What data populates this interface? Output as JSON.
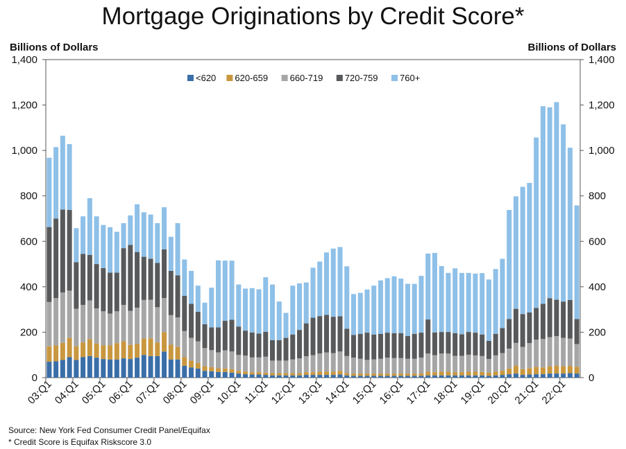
{
  "chart_data": {
    "type": "bar",
    "stacked": true,
    "title": "Mortgage Originations by Credit Score*",
    "ylabel_left": "Billions of Dollars",
    "ylabel_right": "Billions of Dollars",
    "ylim": [
      0,
      1400
    ],
    "yticks": [
      "0",
      "200",
      "400",
      "600",
      "800",
      "1,000",
      "1,200",
      "1,400"
    ],
    "ytick_values": [
      0,
      200,
      400,
      600,
      800,
      1000,
      1200,
      1400
    ],
    "xtick_labels": [
      "03:Q1",
      "04:Q1",
      "05:Q1",
      "06:Q1",
      "07:Q1",
      "08:Q1",
      "09:Q1",
      "10:Q1",
      "11:Q1",
      "12:Q1",
      "13:Q1",
      "14:Q1",
      "15:Q1",
      "16:Q1",
      "17:Q1",
      "18:Q1",
      "19:Q1",
      "20:Q1",
      "21:Q1",
      "22:Q1"
    ],
    "legend_position": "top-center",
    "grid": false,
    "categories": [
      "03:Q1",
      "03:Q2",
      "03:Q3",
      "03:Q4",
      "04:Q1",
      "04:Q2",
      "04:Q3",
      "04:Q4",
      "05:Q1",
      "05:Q2",
      "05:Q3",
      "05:Q4",
      "06:Q1",
      "06:Q2",
      "06:Q3",
      "06:Q4",
      "07:Q1",
      "07:Q2",
      "07:Q3",
      "07:Q4",
      "08:Q1",
      "08:Q2",
      "08:Q3",
      "08:Q4",
      "09:Q1",
      "09:Q2",
      "09:Q3",
      "09:Q4",
      "10:Q1",
      "10:Q2",
      "10:Q3",
      "10:Q4",
      "11:Q1",
      "11:Q2",
      "11:Q3",
      "11:Q4",
      "12:Q1",
      "12:Q2",
      "12:Q3",
      "12:Q4",
      "13:Q1",
      "13:Q2",
      "13:Q3",
      "13:Q4",
      "14:Q1",
      "14:Q2",
      "14:Q3",
      "14:Q4",
      "15:Q1",
      "15:Q2",
      "15:Q3",
      "15:Q4",
      "16:Q1",
      "16:Q2",
      "16:Q3",
      "16:Q4",
      "17:Q1",
      "17:Q2",
      "17:Q3",
      "17:Q4",
      "18:Q1",
      "18:Q2",
      "18:Q3",
      "18:Q4",
      "19:Q1",
      "19:Q2",
      "19:Q3",
      "19:Q4",
      "20:Q1",
      "20:Q2",
      "20:Q3",
      "20:Q4",
      "21:Q1",
      "21:Q2",
      "21:Q3",
      "21:Q4",
      "22:Q1",
      "22:Q2",
      "22:Q3"
    ],
    "series": [
      {
        "name": "<620",
        "color": "#3a6ea8",
        "values": [
          70,
          72,
          78,
          90,
          78,
          90,
          95,
          88,
          82,
          80,
          80,
          85,
          82,
          88,
          100,
          95,
          95,
          115,
          80,
          80,
          52,
          45,
          40,
          30,
          28,
          25,
          25,
          22,
          18,
          15,
          14,
          14,
          12,
          10,
          10,
          10,
          10,
          10,
          12,
          12,
          12,
          12,
          12,
          14,
          10,
          8,
          8,
          8,
          8,
          8,
          8,
          8,
          8,
          8,
          8,
          8,
          10,
          10,
          10,
          10,
          10,
          10,
          10,
          10,
          10,
          8,
          10,
          12,
          15,
          18,
          12,
          14,
          15,
          15,
          18,
          18,
          18,
          20,
          18
        ]
      },
      {
        "name": "620-659",
        "color": "#c9973f",
        "values": [
          68,
          70,
          75,
          85,
          60,
          65,
          75,
          62,
          60,
          62,
          72,
          75,
          62,
          60,
          72,
          78,
          60,
          85,
          65,
          55,
          38,
          30,
          25,
          20,
          18,
          16,
          15,
          15,
          12,
          12,
          10,
          10,
          10,
          10,
          10,
          10,
          10,
          10,
          12,
          12,
          14,
          14,
          14,
          16,
          10,
          10,
          10,
          10,
          10,
          10,
          10,
          10,
          10,
          10,
          10,
          10,
          16,
          14,
          16,
          16,
          14,
          14,
          16,
          16,
          15,
          14,
          16,
          18,
          25,
          35,
          25,
          28,
          32,
          30,
          32,
          35,
          32,
          32,
          30
        ]
      },
      {
        "name": "660-719",
        "color": "#a6a6a6",
        "values": [
          195,
          208,
          222,
          208,
          165,
          165,
          170,
          155,
          150,
          140,
          140,
          160,
          150,
          160,
          170,
          170,
          155,
          150,
          130,
          130,
          115,
          100,
          95,
          80,
          75,
          70,
          80,
          78,
          70,
          70,
          65,
          65,
          70,
          55,
          55,
          55,
          60,
          65,
          70,
          75,
          80,
          85,
          82,
          85,
          75,
          70,
          65,
          60,
          62,
          65,
          70,
          68,
          68,
          65,
          65,
          70,
          80,
          75,
          80,
          80,
          72,
          72,
          75,
          72,
          70,
          60,
          72,
          78,
          88,
          100,
          98,
          110,
          120,
          125,
          128,
          130,
          125,
          120,
          100
        ]
      },
      {
        "name": "720-759",
        "color": "#58595b",
        "values": [
          330,
          350,
          365,
          355,
          205,
          225,
          200,
          195,
          190,
          180,
          170,
          250,
          290,
          245,
          190,
          180,
          195,
          215,
          195,
          185,
          155,
          150,
          130,
          105,
          100,
          110,
          130,
          140,
          125,
          110,
          110,
          105,
          110,
          90,
          90,
          100,
          110,
          125,
          145,
          165,
          165,
          165,
          160,
          155,
          120,
          100,
          110,
          120,
          110,
          110,
          110,
          110,
          110,
          100,
          110,
          110,
          150,
          100,
          95,
          95,
          100,
          95,
          100,
          100,
          95,
          80,
          95,
          110,
          130,
          150,
          145,
          135,
          140,
          155,
          172,
          160,
          160,
          170,
          110
        ]
      },
      {
        "name": "760+",
        "color": "#8ec0e8",
        "values": [
          305,
          315,
          325,
          290,
          150,
          165,
          250,
          210,
          190,
          200,
          180,
          110,
          130,
          210,
          196,
          195,
          175,
          185,
          150,
          230,
          160,
          145,
          115,
          95,
          175,
          295,
          265,
          260,
          185,
          185,
          195,
          195,
          240,
          245,
          170,
          110,
          215,
          205,
          180,
          220,
          240,
          275,
          300,
          305,
          275,
          180,
          180,
          190,
          215,
          235,
          240,
          250,
          240,
          230,
          220,
          250,
          290,
          350,
          290,
          260,
          285,
          270,
          260,
          260,
          270,
          270,
          285,
          305,
          480,
          495,
          560,
          570,
          750,
          870,
          840,
          870,
          780,
          670,
          500
        ]
      }
    ]
  },
  "legend": [
    {
      "label": "<620",
      "color": "#3a6ea8"
    },
    {
      "label": "620-659",
      "color": "#c9973f"
    },
    {
      "label": "660-719",
      "color": "#a6a6a6"
    },
    {
      "label": "720-759",
      "color": "#58595b"
    },
    {
      "label": "760+",
      "color": "#8ec0e8"
    }
  ],
  "source": "Source: New York Fed Consumer Credit Panel/Equifax",
  "footnote": "* Credit Score is Equifax Riskscore 3.0"
}
